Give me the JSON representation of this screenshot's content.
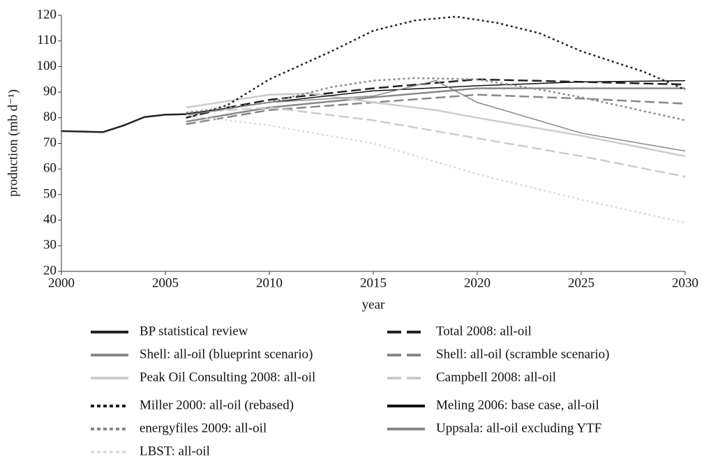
{
  "chart_data": {
    "type": "line",
    "xlabel": "year",
    "ylabel": "production (mb d⁻¹)",
    "xlim": [
      2000,
      2030
    ],
    "xticks": [
      2000,
      2005,
      2010,
      2015,
      2020,
      2025,
      2030
    ],
    "ylim": [
      20,
      120
    ],
    "yticks": [
      20,
      30,
      40,
      50,
      60,
      70,
      80,
      90,
      100,
      110,
      120
    ],
    "grid": false,
    "series": [
      {
        "name": "BP statistical review",
        "color": "#222222",
        "dash": "solid",
        "width": 2.5,
        "x": [
          2000,
          2001,
          2002,
          2003,
          2004,
          2005,
          2006
        ],
        "values": [
          74.8,
          74.6,
          74.4,
          77,
          80.3,
          81.2,
          81.4
        ]
      },
      {
        "name": "Total 2008: all-oil",
        "color": "#222222",
        "dash": "dashed",
        "width": 2.5,
        "x": [
          2006,
          2008,
          2010,
          2015,
          2020,
          2025,
          2030
        ],
        "values": [
          80,
          84,
          87,
          91.5,
          95,
          94,
          93
        ]
      },
      {
        "name": "Shell: all-oil (blueprint scenario)",
        "color": "#888888",
        "dash": "solid",
        "width": 2.5,
        "x": [
          2006,
          2010,
          2015,
          2020,
          2025,
          2030
        ],
        "values": [
          78.5,
          84,
          88,
          91.5,
          91.5,
          91.5
        ]
      },
      {
        "name": "Shell: all-oil (scramble scenario)",
        "color": "#888888",
        "dash": "dashed",
        "width": 2.5,
        "x": [
          2006,
          2010,
          2015,
          2020,
          2025,
          2030
        ],
        "values": [
          77.5,
          83,
          86,
          89,
          87.5,
          85.5
        ]
      },
      {
        "name": "Peak Oil Consulting 2008: all-oil",
        "color": "#cccccc",
        "dash": "solid",
        "width": 2.5,
        "x": [
          2006,
          2010,
          2012,
          2015,
          2018,
          2020,
          2025,
          2030
        ],
        "values": [
          84,
          89,
          89.5,
          86,
          83,
          80,
          73,
          65
        ]
      },
      {
        "name": "Campbell 2008: all-oil",
        "color": "#cccccc",
        "dash": "dashed",
        "width": 2.5,
        "x": [
          2006,
          2010,
          2015,
          2020,
          2025,
          2030
        ],
        "values": [
          82,
          84,
          79,
          72,
          65,
          57
        ]
      },
      {
        "name": "Miller 2000: all-oil (rebased)",
        "color": "#222222",
        "dash": "dotted",
        "width": 2.5,
        "x": [
          2006,
          2008,
          2010,
          2013,
          2015,
          2017,
          2019,
          2021,
          2023,
          2025,
          2028,
          2030
        ],
        "values": [
          80,
          85,
          95,
          106,
          114,
          118,
          119.5,
          117,
          113,
          106,
          98,
          91
        ]
      },
      {
        "name": "Meling 2006: base case, all-oil",
        "color": "#111111",
        "dash": "solid",
        "width": 1.5,
        "x": [
          2006,
          2010,
          2015,
          2020,
          2025,
          2030
        ],
        "values": [
          81.5,
          86,
          90.5,
          92.5,
          94,
          94.5
        ]
      },
      {
        "name": "energyfiles 2009: all-oil",
        "color": "#888888",
        "dash": "dotted",
        "width": 2.5,
        "x": [
          2006,
          2010,
          2013,
          2015,
          2017,
          2020,
          2023,
          2025,
          2030
        ],
        "values": [
          82,
          86,
          92,
          94.5,
          95.5,
          95,
          91,
          88,
          79
        ]
      },
      {
        "name": "Uppsala: all-oil excluding YTF",
        "color": "#888888",
        "dash": "solid",
        "width": 1.5,
        "x": [
          2006,
          2010,
          2015,
          2018,
          2020,
          2025,
          2030
        ],
        "values": [
          81,
          86,
          88.5,
          94.5,
          86,
          74,
          67
        ]
      },
      {
        "name": "LBST: all-oil",
        "color": "#dddddd",
        "dash": "dotted",
        "width": 2.5,
        "x": [
          2006,
          2010,
          2015,
          2020,
          2025,
          2030
        ],
        "values": [
          81,
          77,
          70,
          58,
          48,
          39
        ]
      }
    ]
  }
}
